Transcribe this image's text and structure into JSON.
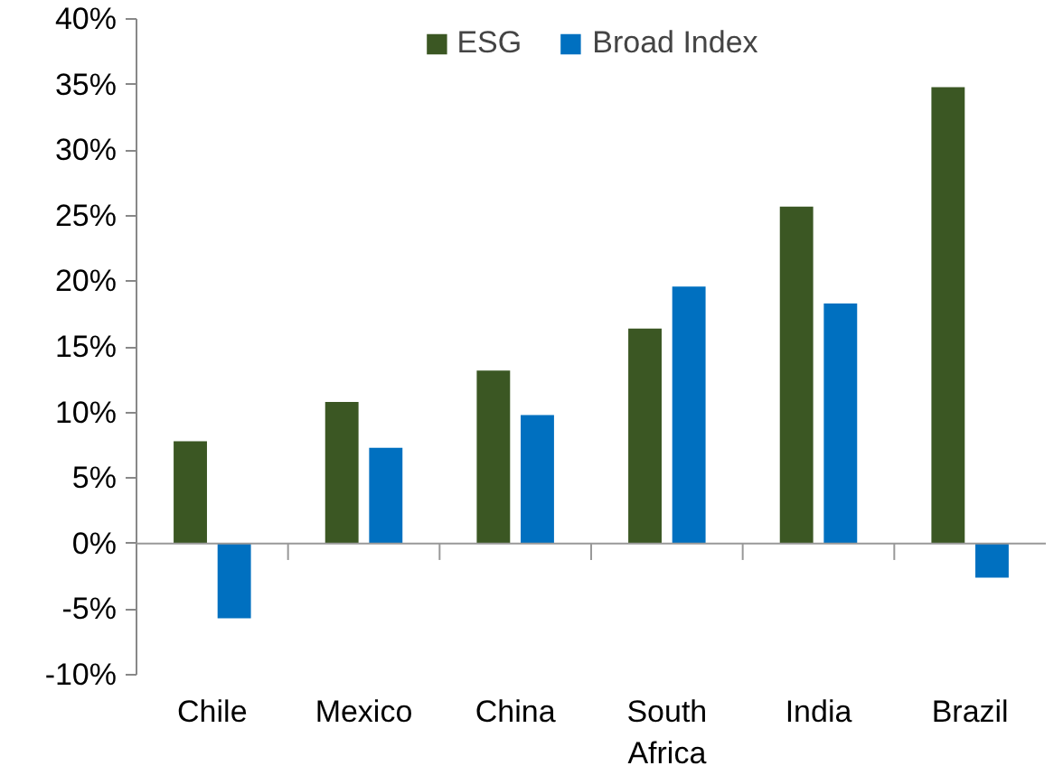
{
  "chart_data": {
    "type": "bar",
    "categories": [
      "Chile",
      "Mexico",
      "China",
      "South\nAfrica",
      "India",
      "Brazil"
    ],
    "series": [
      {
        "name": "ESG",
        "color": "#3b5723",
        "values": [
          7.8,
          10.8,
          13.2,
          16.4,
          25.7,
          34.8
        ]
      },
      {
        "name": "Broad Index",
        "color": "#0070c0",
        "values": [
          -5.7,
          7.3,
          9.8,
          19.6,
          18.3,
          -2.6
        ]
      }
    ],
    "ylim": [
      -10,
      40
    ],
    "yticks": [
      {
        "value": -10,
        "label": "-10%"
      },
      {
        "value": -5,
        "label": "-5%"
      },
      {
        "value": 0,
        "label": "0%"
      },
      {
        "value": 5,
        "label": "5%"
      },
      {
        "value": 10,
        "label": "10%"
      },
      {
        "value": 15,
        "label": "15%"
      },
      {
        "value": 20,
        "label": "20%"
      },
      {
        "value": 25,
        "label": "25%"
      },
      {
        "value": 30,
        "label": "30%"
      },
      {
        "value": 35,
        "label": "35%"
      },
      {
        "value": 40,
        "label": "40%"
      }
    ],
    "legend": "top"
  }
}
